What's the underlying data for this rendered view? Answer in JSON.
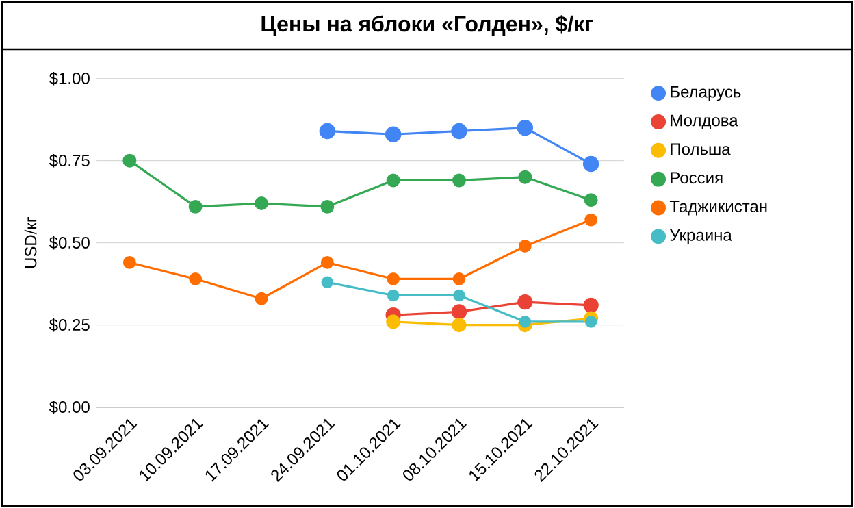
{
  "chart_data": {
    "type": "line",
    "title": "**Цены на яблоки «Голден», $/кг**",
    "ylabel": "USD/кг",
    "categories": [
      "03.09.2021",
      "10.09.2021",
      "17.09.2021",
      "24.09.2021",
      "01.10.2021",
      "08.10.2021",
      "15.10.2021",
      "22.10.2021"
    ],
    "series": [
      {
        "name": "Беларусь",
        "color": "#4285f4",
        "values": [
          null,
          null,
          null,
          0.84,
          0.83,
          0.84,
          0.85,
          0.74
        ]
      },
      {
        "name": "Молдова",
        "color": "#ea4335",
        "values": [
          null,
          null,
          null,
          null,
          0.28,
          0.29,
          0.32,
          0.31
        ]
      },
      {
        "name": "Польша",
        "color": "#fbbc04",
        "values": [
          null,
          null,
          null,
          null,
          0.26,
          0.25,
          0.25,
          0.27
        ]
      },
      {
        "name": "Россия",
        "color": "#34a853",
        "values": [
          0.75,
          0.61,
          0.62,
          0.61,
          0.69,
          0.69,
          0.7,
          0.63
        ]
      },
      {
        "name": "Таджикистан",
        "color": "#ff6d01",
        "values": [
          0.44,
          0.39,
          0.33,
          0.44,
          0.39,
          0.39,
          0.49,
          0.57
        ]
      },
      {
        "name": "Украина",
        "color": "#46bdc6",
        "values": [
          null,
          null,
          null,
          0.38,
          0.34,
          0.34,
          0.26,
          0.26
        ]
      }
    ],
    "ylim": [
      0,
      1
    ],
    "yticks": [
      {
        "value": 0,
        "label": "$0.00"
      },
      {
        "value": 0.25,
        "label": "$0.25"
      },
      {
        "value": 0.5,
        "label": "$0.50"
      },
      {
        "value": 0.75,
        "label": "$0.75"
      },
      {
        "value": 1,
        "label": "$1.00"
      }
    ],
    "grid": "y",
    "legend": "right",
    "marker": "circle",
    "line_style": "solid"
  }
}
